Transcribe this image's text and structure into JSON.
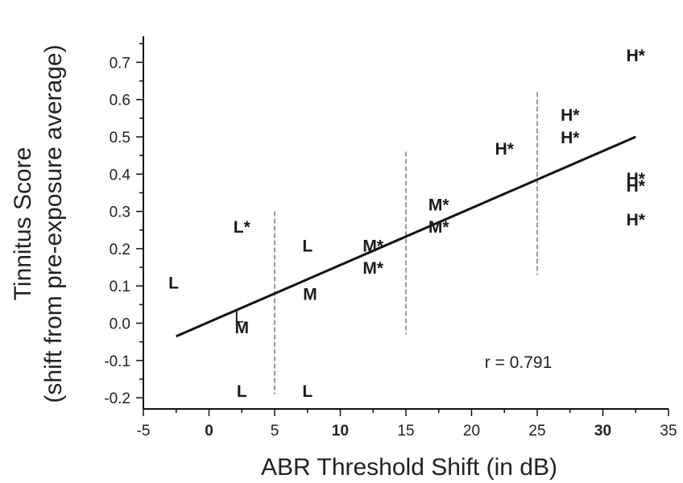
{
  "chart_data": {
    "type": "scatter",
    "title": "",
    "xlabel": "ABR Threshold Shift (in dB)",
    "ylabel_line1": "Tinnitus Score",
    "ylabel_line2": "(shift from pre-exposure average)",
    "xlim": [
      -5,
      35
    ],
    "ylim": [
      -0.23,
      0.77
    ],
    "x_ticks": [
      {
        "value": -5,
        "label": "-5",
        "bold": false
      },
      {
        "value": 0,
        "label": "0",
        "bold": true
      },
      {
        "value": 5,
        "label": "5",
        "bold": false
      },
      {
        "value": 10,
        "label": "10",
        "bold": true
      },
      {
        "value": 15,
        "label": "15",
        "bold": false
      },
      {
        "value": 20,
        "label": "20",
        "bold": false
      },
      {
        "value": 25,
        "label": "25",
        "bold": false
      },
      {
        "value": 30,
        "label": "30",
        "bold": true
      },
      {
        "value": 35,
        "label": "35",
        "bold": false
      }
    ],
    "y_ticks": [
      {
        "value": 0.7,
        "label": "0.7"
      },
      {
        "value": 0.6,
        "label": "0.6"
      },
      {
        "value": 0.5,
        "label": "0.5"
      },
      {
        "value": 0.4,
        "label": "0.4"
      },
      {
        "value": 0.3,
        "label": "0.3"
      },
      {
        "value": 0.2,
        "label": "0.2"
      },
      {
        "value": 0.1,
        "label": "0.1"
      },
      {
        "value": 0.0,
        "label": "0.0"
      },
      {
        "value": -0.1,
        "label": "-0.1"
      },
      {
        "value": -0.2,
        "label": "-0.2"
      }
    ],
    "points": [
      {
        "x": -2.7,
        "y": 0.11,
        "label": "L",
        "bold": true
      },
      {
        "x": 2.5,
        "y": 0.26,
        "label": "L*",
        "bold": true
      },
      {
        "x": 2.3,
        "y": 0.02,
        "label": "L",
        "bold": false
      },
      {
        "x": 2.5,
        "y": -0.01,
        "label": "M",
        "bold": true
      },
      {
        "x": 2.5,
        "y": -0.18,
        "label": "L",
        "bold": true
      },
      {
        "x": 7.5,
        "y": 0.21,
        "label": "L",
        "bold": true
      },
      {
        "x": 7.7,
        "y": 0.08,
        "label": "M",
        "bold": true
      },
      {
        "x": 7.5,
        "y": -0.18,
        "label": "L",
        "bold": true
      },
      {
        "x": 12.5,
        "y": 0.21,
        "label": "M*",
        "bold": true
      },
      {
        "x": 12.5,
        "y": 0.15,
        "label": "M*",
        "bold": true
      },
      {
        "x": 17.5,
        "y": 0.32,
        "label": "M*",
        "bold": true
      },
      {
        "x": 17.5,
        "y": 0.26,
        "label": "M*",
        "bold": true
      },
      {
        "x": 22.5,
        "y": 0.47,
        "label": "H*",
        "bold": true
      },
      {
        "x": 27.5,
        "y": 0.56,
        "label": "H*",
        "bold": true
      },
      {
        "x": 27.5,
        "y": 0.5,
        "label": "H*",
        "bold": true
      },
      {
        "x": 32.5,
        "y": 0.72,
        "label": "H*",
        "bold": true
      },
      {
        "x": 32.5,
        "y": 0.39,
        "label": "H*",
        "bold": true
      },
      {
        "x": 32.5,
        "y": 0.37,
        "label": "H*",
        "bold": true
      },
      {
        "x": 32.5,
        "y": 0.28,
        "label": "H*",
        "bold": true
      }
    ],
    "regression_line": {
      "x1": -2.5,
      "y1": -0.035,
      "x2": 32.5,
      "y2": 0.5
    },
    "dividers": [
      {
        "x": 5,
        "y_from": -0.19,
        "y_to": 0.3
      },
      {
        "x": 15,
        "y_from": -0.03,
        "y_to": 0.46
      },
      {
        "x": 25,
        "y_from": 0.13,
        "y_to": 0.62
      }
    ],
    "annotation": {
      "text": "r = 0.791",
      "x": 21,
      "y": -0.12
    }
  }
}
